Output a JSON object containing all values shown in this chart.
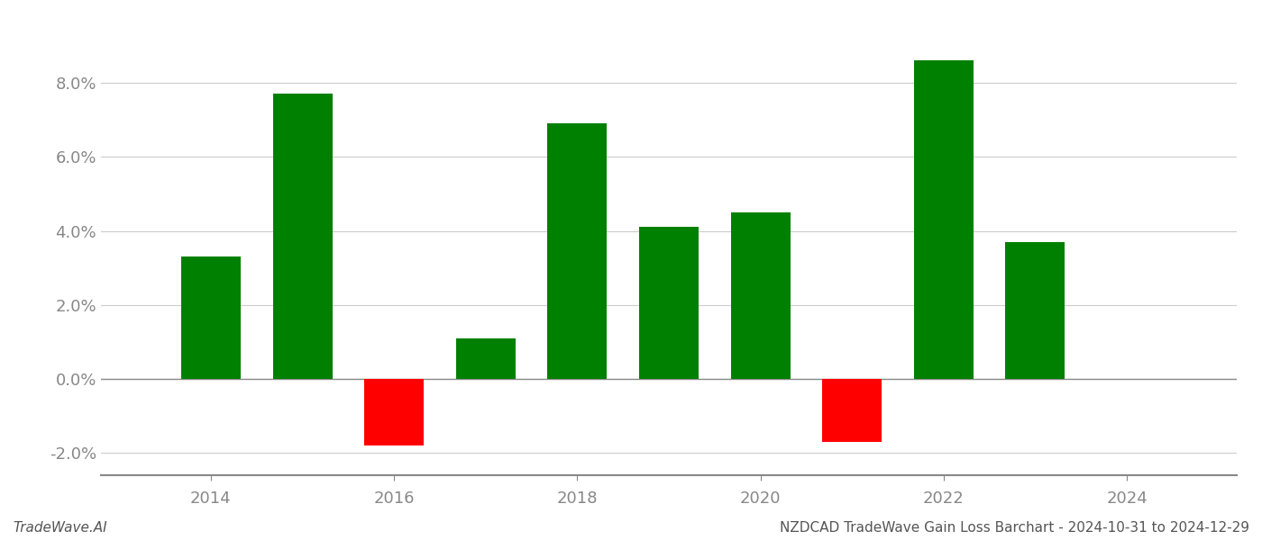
{
  "years": [
    2014,
    2015,
    2016,
    2017,
    2018,
    2019,
    2020,
    2021,
    2022,
    2023
  ],
  "values": [
    0.033,
    0.077,
    -0.018,
    0.011,
    0.069,
    0.041,
    0.045,
    -0.017,
    0.086,
    0.037
  ],
  "colors": [
    "#008000",
    "#008000",
    "#ff0000",
    "#008000",
    "#008000",
    "#008000",
    "#008000",
    "#ff0000",
    "#008000",
    "#008000"
  ],
  "footer_left": "TradeWave.AI",
  "footer_right": "NZDCAD TradeWave Gain Loss Barchart - 2024-10-31 to 2024-12-29",
  "ylim": [
    -0.026,
    0.098
  ],
  "yticks": [
    -0.02,
    0.0,
    0.02,
    0.04,
    0.06,
    0.08
  ],
  "xlim": [
    2012.8,
    2025.2
  ],
  "xticks": [
    2014,
    2016,
    2018,
    2020,
    2022,
    2024
  ],
  "background_color": "#ffffff",
  "grid_color": "#cccccc",
  "bar_width": 0.65,
  "footer_fontsize": 11,
  "tick_fontsize": 13,
  "tick_color": "#888888"
}
